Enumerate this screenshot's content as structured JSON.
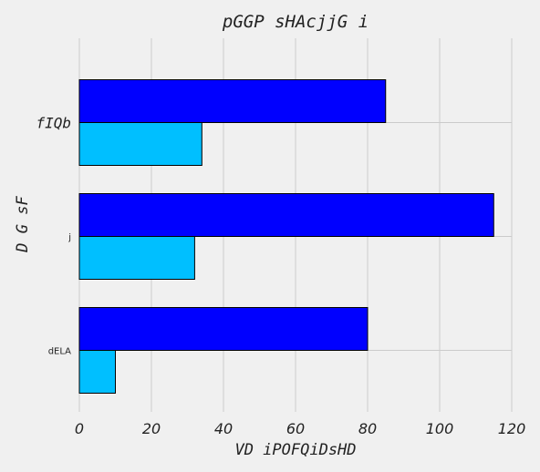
{
  "chart_data": {
    "type": "bar",
    "orientation": "horizontal",
    "title": "pGGP sHAcjjG i",
    "xlabel": "VD  iPOFQiDsHD",
    "ylabel": "D  G  sF",
    "categories": [
      "fIQb",
      "j",
      "dELA"
    ],
    "series": [
      {
        "values": [
          85,
          115,
          80
        ],
        "color": "#0000ff"
      },
      {
        "values": [
          34,
          32,
          10
        ],
        "color": "#00bfff"
      }
    ],
    "xlim": [
      0,
      120
    ],
    "xticks": [
      0,
      20,
      40,
      60,
      80,
      100,
      120
    ],
    "grid": true,
    "background": "#f0f0f0",
    "grid_color": "#cbcbcb"
  }
}
